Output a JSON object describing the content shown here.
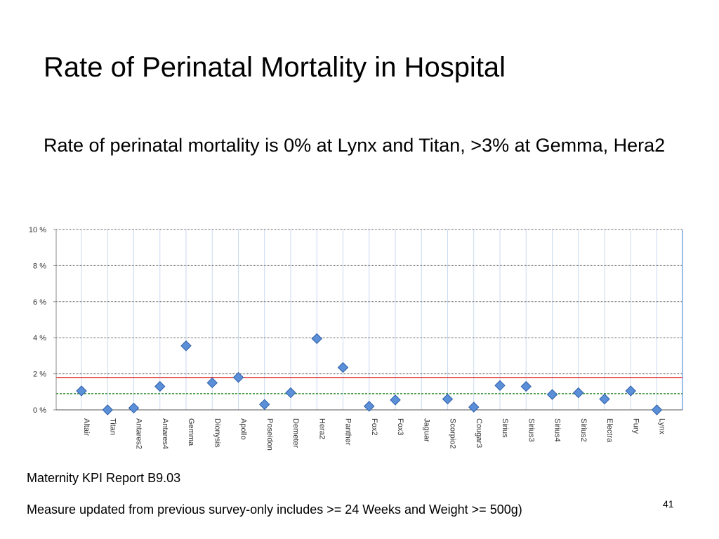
{
  "slide": {
    "title": "Rate of Perinatal Mortality in Hospital",
    "subtitle": "Rate of perinatal mortality is 0% at Lynx and Titan, >3% at Gemma, Hera2",
    "footnote_1": "Maternity KPI Report B9.03",
    "footnote_2": "Measure updated from previous survey-only includes >= 24 Weeks and Weight >= 500g)",
    "page_number": "41"
  },
  "chart_data": {
    "type": "scatter",
    "categories": [
      "Altair",
      "Titan",
      "Antares2",
      "Antares4",
      "Gemma",
      "Dionysis",
      "Apollo",
      "Poseidon",
      "Demeter",
      "Hera2",
      "Panther",
      "Fox2",
      "Fox3",
      "Jaguar",
      "Scorpio2",
      "Cougar3",
      "Sirius",
      "Sirius3",
      "Sirius4",
      "Sirius2",
      "Electra",
      "Fury",
      "Lynx"
    ],
    "values": [
      1.05,
      0.0,
      0.1,
      1.3,
      3.55,
      1.5,
      1.8,
      0.3,
      0.95,
      3.95,
      2.35,
      0.2,
      0.55,
      null,
      0.6,
      0.15,
      1.35,
      1.3,
      0.85,
      0.95,
      0.6,
      1.05,
      0.0
    ],
    "ylim": [
      0,
      10
    ],
    "yticks": [
      0,
      2,
      4,
      6,
      8,
      10
    ],
    "ytick_labels": [
      "0 %",
      "2 %",
      "4 %",
      "6 %",
      "8 %",
      "10 %"
    ],
    "reference_lines": [
      {
        "value": 1.8,
        "color": "#e53935",
        "style": "solid"
      },
      {
        "value": 0.9,
        "color": "#2e8b2e",
        "style": "dashed"
      }
    ],
    "marker_color": "#5b8fd8",
    "marker_stroke": "#2f5fa8",
    "grid": true
  }
}
